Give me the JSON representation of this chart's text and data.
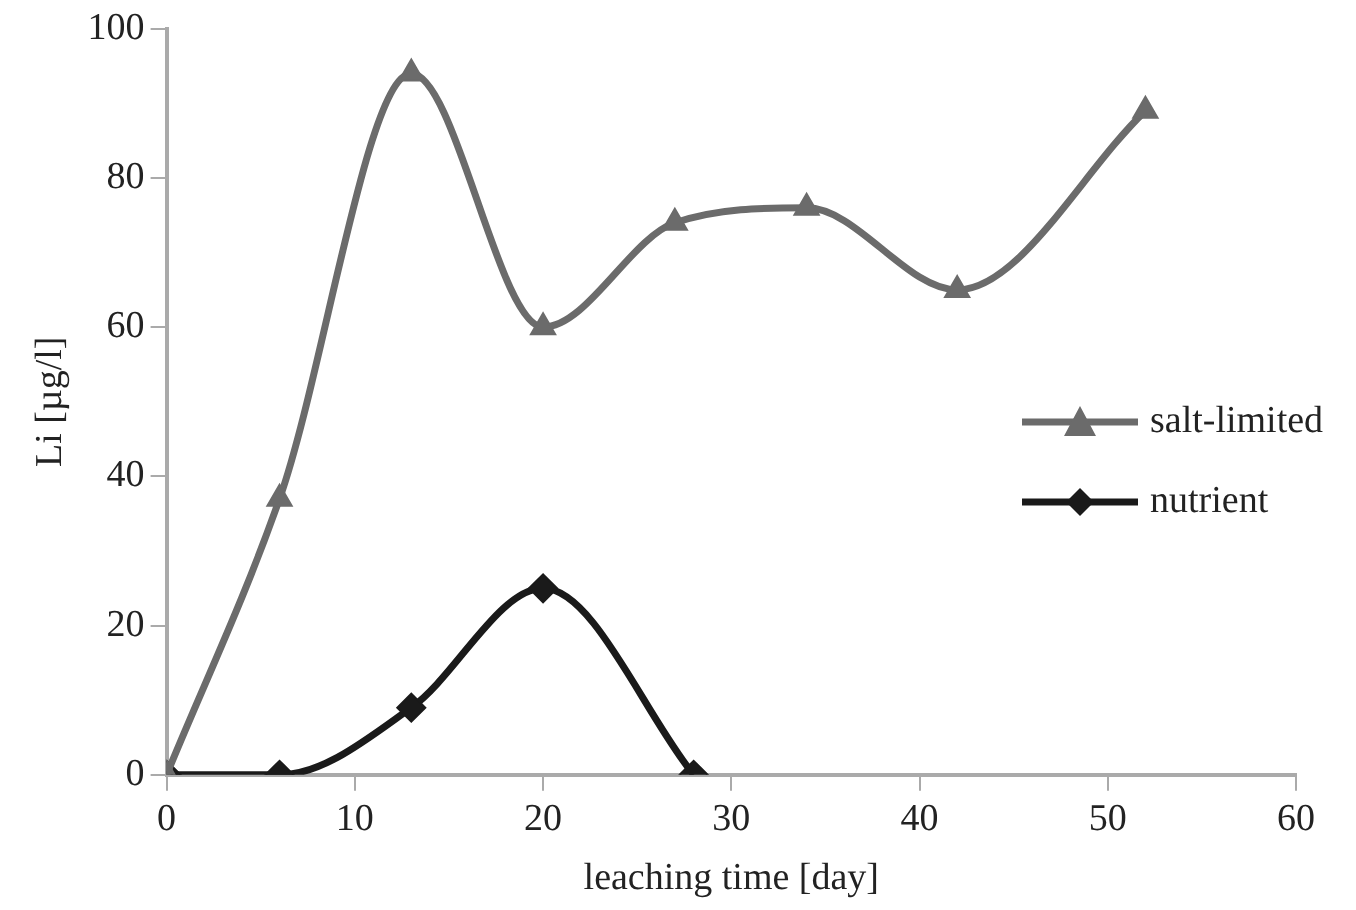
{
  "chart_data": {
    "type": "line",
    "xlabel": "leaching time [day]",
    "ylabel": "Li [µg/l]",
    "xlim": [
      0,
      60
    ],
    "xticks": [
      0,
      10,
      20,
      30,
      40,
      50,
      60
    ],
    "ylim": [
      0,
      100
    ],
    "yticks": [
      0,
      20,
      40,
      60,
      80,
      100
    ],
    "grid": false,
    "legend": "right",
    "series": [
      {
        "name": "salt-limited",
        "color": "#6b6b6b",
        "marker": "triangle",
        "x": [
          0,
          6,
          13,
          20,
          27,
          34,
          42,
          52
        ],
        "values": [
          0,
          37,
          94,
          60,
          74,
          76,
          65,
          89
        ]
      },
      {
        "name": "nutrient",
        "color": "#1a1a1a",
        "marker": "diamond",
        "x": [
          0,
          6,
          13,
          20,
          28
        ],
        "values": [
          0,
          0,
          9,
          25,
          0
        ]
      }
    ]
  }
}
